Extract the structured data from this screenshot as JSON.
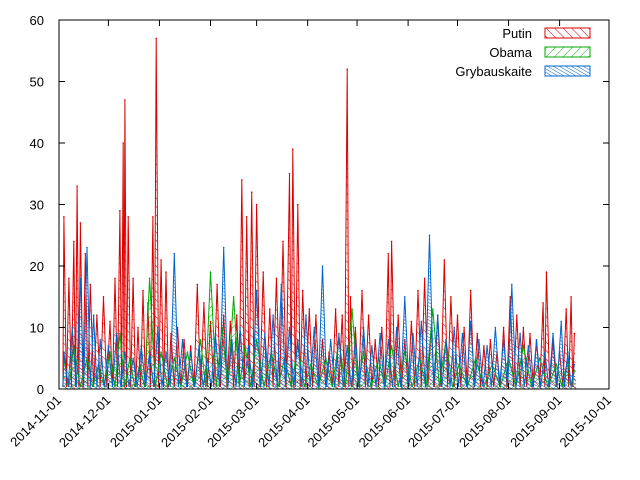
{
  "chart_data": {
    "type": "area",
    "title": "",
    "xlabel": "",
    "ylabel": "",
    "ylim": [
      0,
      60
    ],
    "xlim": [
      "2014-11-01",
      "2015-10-01"
    ],
    "yticks": [
      0,
      10,
      20,
      30,
      40,
      50,
      60
    ],
    "xticks": [
      "2014-11-01",
      "2014-12-01",
      "2015-01-01",
      "2015-02-01",
      "2015-03-01",
      "2015-04-01",
      "2015-05-01",
      "2015-06-01",
      "2015-07-01",
      "2015-08-01",
      "2015-09-01",
      "2015-10-01"
    ],
    "grid": false,
    "legend_position": "top-right",
    "series": [
      {
        "name": "Putin",
        "color": "#dd0000",
        "points": [
          [
            "2014-11-04",
            28
          ],
          [
            "2014-11-07",
            18
          ],
          [
            "2014-11-10",
            24
          ],
          [
            "2014-11-12",
            33
          ],
          [
            "2014-11-14",
            27
          ],
          [
            "2014-11-17",
            22
          ],
          [
            "2014-11-20",
            17
          ],
          [
            "2014-11-24",
            12
          ],
          [
            "2014-11-28",
            15
          ],
          [
            "2014-12-02",
            11
          ],
          [
            "2014-12-05",
            18
          ],
          [
            "2014-12-08",
            29
          ],
          [
            "2014-12-10",
            40
          ],
          [
            "2014-12-11",
            47
          ],
          [
            "2014-12-13",
            28
          ],
          [
            "2014-12-16",
            18
          ],
          [
            "2014-12-19",
            10
          ],
          [
            "2014-12-22",
            16
          ],
          [
            "2014-12-25",
            14
          ],
          [
            "2014-12-28",
            28
          ],
          [
            "2014-12-30",
            57
          ],
          [
            "2015-01-02",
            21
          ],
          [
            "2015-01-05",
            19
          ],
          [
            "2015-01-08",
            9
          ],
          [
            "2015-01-12",
            10
          ],
          [
            "2015-01-16",
            8
          ],
          [
            "2015-01-20",
            7
          ],
          [
            "2015-01-24",
            17
          ],
          [
            "2015-01-28",
            14
          ],
          [
            "2015-02-01",
            11
          ],
          [
            "2015-02-05",
            17
          ],
          [
            "2015-02-09",
            12
          ],
          [
            "2015-02-13",
            11
          ],
          [
            "2015-02-17",
            12
          ],
          [
            "2015-02-20",
            34
          ],
          [
            "2015-02-23",
            28
          ],
          [
            "2015-02-26",
            32
          ],
          [
            "2015-03-01",
            30
          ],
          [
            "2015-03-05",
            19
          ],
          [
            "2015-03-09",
            13
          ],
          [
            "2015-03-13",
            18
          ],
          [
            "2015-03-17",
            24
          ],
          [
            "2015-03-21",
            35
          ],
          [
            "2015-03-23",
            39
          ],
          [
            "2015-03-26",
            30
          ],
          [
            "2015-03-29",
            16
          ],
          [
            "2015-04-02",
            13
          ],
          [
            "2015-04-06",
            12
          ],
          [
            "2015-04-10",
            8
          ],
          [
            "2015-04-14",
            6
          ],
          [
            "2015-04-18",
            13
          ],
          [
            "2015-04-22",
            12
          ],
          [
            "2015-04-25",
            52
          ],
          [
            "2015-04-27",
            15
          ],
          [
            "2015-04-30",
            10
          ],
          [
            "2015-05-04",
            16
          ],
          [
            "2015-05-08",
            12
          ],
          [
            "2015-05-12",
            8
          ],
          [
            "2015-05-16",
            10
          ],
          [
            "2015-05-20",
            22
          ],
          [
            "2015-05-22",
            24
          ],
          [
            "2015-05-26",
            12
          ],
          [
            "2015-05-30",
            8
          ],
          [
            "2015-06-03",
            11
          ],
          [
            "2015-06-07",
            16
          ],
          [
            "2015-06-11",
            18
          ],
          [
            "2015-06-15",
            10
          ],
          [
            "2015-06-19",
            12
          ],
          [
            "2015-06-23",
            21
          ],
          [
            "2015-06-27",
            15
          ],
          [
            "2015-07-01",
            12
          ],
          [
            "2015-07-05",
            10
          ],
          [
            "2015-07-09",
            16
          ],
          [
            "2015-07-13",
            9
          ],
          [
            "2015-07-17",
            7
          ],
          [
            "2015-07-21",
            8
          ],
          [
            "2015-07-25",
            6
          ],
          [
            "2015-07-29",
            10
          ],
          [
            "2015-08-02",
            15
          ],
          [
            "2015-08-06",
            12
          ],
          [
            "2015-08-10",
            10
          ],
          [
            "2015-08-14",
            9
          ],
          [
            "2015-08-18",
            8
          ],
          [
            "2015-08-22",
            14
          ],
          [
            "2015-08-24",
            19
          ],
          [
            "2015-08-28",
            8
          ],
          [
            "2015-09-01",
            6
          ],
          [
            "2015-09-05",
            13
          ],
          [
            "2015-09-08",
            15
          ],
          [
            "2015-09-10",
            9
          ]
        ]
      },
      {
        "name": "Obama",
        "color": "#00aa00",
        "points": [
          [
            "2014-11-04",
            5
          ],
          [
            "2014-11-10",
            7
          ],
          [
            "2014-11-18",
            5
          ],
          [
            "2014-11-25",
            4
          ],
          [
            "2014-12-02",
            6
          ],
          [
            "2014-12-08",
            9
          ],
          [
            "2014-12-14",
            5
          ],
          [
            "2014-12-20",
            4
          ],
          [
            "2014-12-26",
            18
          ],
          [
            "2015-01-02",
            6
          ],
          [
            "2015-01-10",
            5
          ],
          [
            "2015-01-18",
            6
          ],
          [
            "2015-01-26",
            8
          ],
          [
            "2015-02-01",
            19
          ],
          [
            "2015-02-08",
            10
          ],
          [
            "2015-02-15",
            15
          ],
          [
            "2015-02-22",
            7
          ],
          [
            "2015-03-01",
            8
          ],
          [
            "2015-03-10",
            6
          ],
          [
            "2015-03-18",
            5
          ],
          [
            "2015-03-26",
            7
          ],
          [
            "2015-04-03",
            4
          ],
          [
            "2015-04-12",
            5
          ],
          [
            "2015-04-20",
            8
          ],
          [
            "2015-04-28",
            13
          ],
          [
            "2015-05-05",
            6
          ],
          [
            "2015-05-14",
            5
          ],
          [
            "2015-05-22",
            7
          ],
          [
            "2015-05-30",
            6
          ],
          [
            "2015-06-08",
            5
          ],
          [
            "2015-06-16",
            13
          ],
          [
            "2015-06-24",
            8
          ],
          [
            "2015-07-02",
            4
          ],
          [
            "2015-07-12",
            5
          ],
          [
            "2015-07-22",
            4
          ],
          [
            "2015-08-01",
            5
          ],
          [
            "2015-08-10",
            7
          ],
          [
            "2015-08-20",
            5
          ],
          [
            "2015-08-30",
            4
          ],
          [
            "2015-09-06",
            5
          ],
          [
            "2015-09-10",
            3
          ]
        ]
      },
      {
        "name": "Grybauskaite",
        "color": "#0066cc",
        "points": [
          [
            "2014-11-04",
            6
          ],
          [
            "2014-11-09",
            10
          ],
          [
            "2014-11-14",
            18
          ],
          [
            "2014-11-18",
            23
          ],
          [
            "2014-11-22",
            12
          ],
          [
            "2014-11-26",
            8
          ],
          [
            "2014-12-01",
            7
          ],
          [
            "2014-12-06",
            9
          ],
          [
            "2014-12-11",
            6
          ],
          [
            "2014-12-16",
            5
          ],
          [
            "2014-12-21",
            7
          ],
          [
            "2014-12-26",
            6
          ],
          [
            "2014-12-31",
            10
          ],
          [
            "2015-01-05",
            6
          ],
          [
            "2015-01-10",
            22
          ],
          [
            "2015-01-15",
            8
          ],
          [
            "2015-01-20",
            6
          ],
          [
            "2015-01-25",
            7
          ],
          [
            "2015-01-30",
            5
          ],
          [
            "2015-02-04",
            9
          ],
          [
            "2015-02-09",
            23
          ],
          [
            "2015-02-14",
            8
          ],
          [
            "2015-02-19",
            10
          ],
          [
            "2015-02-24",
            7
          ],
          [
            "2015-03-01",
            16
          ],
          [
            "2015-03-06",
            9
          ],
          [
            "2015-03-11",
            12
          ],
          [
            "2015-03-16",
            17
          ],
          [
            "2015-03-21",
            10
          ],
          [
            "2015-03-26",
            8
          ],
          [
            "2015-03-31",
            12
          ],
          [
            "2015-04-05",
            10
          ],
          [
            "2015-04-10",
            20
          ],
          [
            "2015-04-15",
            8
          ],
          [
            "2015-04-20",
            9
          ],
          [
            "2015-04-25",
            7
          ],
          [
            "2015-04-30",
            8
          ],
          [
            "2015-05-05",
            10
          ],
          [
            "2015-05-10",
            7
          ],
          [
            "2015-05-15",
            9
          ],
          [
            "2015-05-20",
            8
          ],
          [
            "2015-05-25",
            10
          ],
          [
            "2015-05-30",
            15
          ],
          [
            "2015-06-04",
            9
          ],
          [
            "2015-06-09",
            11
          ],
          [
            "2015-06-14",
            25
          ],
          [
            "2015-06-19",
            12
          ],
          [
            "2015-06-24",
            8
          ],
          [
            "2015-06-29",
            10
          ],
          [
            "2015-07-04",
            9
          ],
          [
            "2015-07-09",
            11
          ],
          [
            "2015-07-14",
            8
          ],
          [
            "2015-07-19",
            7
          ],
          [
            "2015-07-24",
            10
          ],
          [
            "2015-07-29",
            8
          ],
          [
            "2015-08-03",
            17
          ],
          [
            "2015-08-08",
            9
          ],
          [
            "2015-08-13",
            7
          ],
          [
            "2015-08-18",
            8
          ],
          [
            "2015-08-23",
            6
          ],
          [
            "2015-08-28",
            9
          ],
          [
            "2015-09-02",
            11
          ],
          [
            "2015-09-06",
            6
          ],
          [
            "2015-09-10",
            4
          ]
        ]
      }
    ]
  }
}
